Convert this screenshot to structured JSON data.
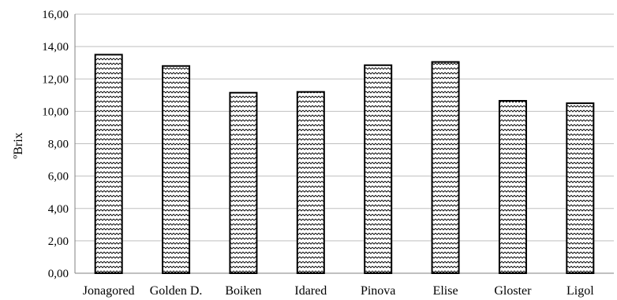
{
  "chart_data": {
    "type": "bar",
    "categories": [
      "Jonagored",
      "Golden D.",
      "Boiken",
      "Idared",
      "Pinova",
      "Elise",
      "Gloster",
      "Ligol"
    ],
    "values": [
      13.5,
      12.8,
      11.15,
      11.2,
      12.85,
      13.05,
      10.65,
      10.5
    ],
    "ylabel": "ºBrix",
    "ylim": [
      0,
      16
    ],
    "yticks": [
      "0,00",
      "2,00",
      "4,00",
      "6,00",
      "8,00",
      "10,00",
      "12,00",
      "14,00",
      "16,00"
    ],
    "grid": true,
    "legend": "none",
    "bar_pattern": "zigzag",
    "colors": {
      "bar_fill": "#ffffff",
      "bar_stroke": "#000000",
      "grid": "#bfbfbf"
    }
  }
}
